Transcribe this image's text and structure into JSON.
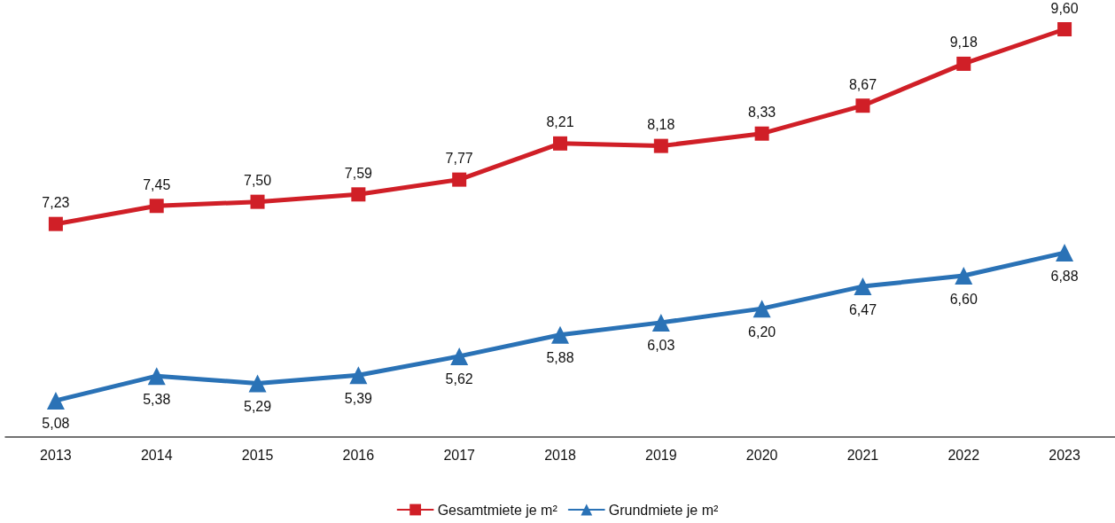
{
  "chart_data": {
    "type": "line",
    "categories": [
      "2013",
      "2014",
      "2015",
      "2016",
      "2017",
      "2018",
      "2019",
      "2020",
      "2021",
      "2022",
      "2023"
    ],
    "series": [
      {
        "name": "Gesamtmiete je m²",
        "color": "#d01f27",
        "marker": "square",
        "values": [
          7.23,
          7.45,
          7.5,
          7.59,
          7.77,
          8.21,
          8.18,
          8.33,
          8.67,
          9.18,
          9.6
        ],
        "value_labels": [
          "7,23",
          "7,45",
          "7,50",
          "7,59",
          "7,77",
          "8,21",
          "8,18",
          "8,33",
          "8,67",
          "9,18",
          "9,60"
        ]
      },
      {
        "name": "Grundmiete je m²",
        "color": "#2a72b6",
        "marker": "triangle",
        "values": [
          5.08,
          5.38,
          5.29,
          5.39,
          5.62,
          5.88,
          6.03,
          6.2,
          6.47,
          6.6,
          6.88
        ],
        "value_labels": [
          "5,08",
          "5,38",
          "5,29",
          "5,39",
          "5,62",
          "5,88",
          "6,03",
          "6,20",
          "6,47",
          "6,60",
          "6,88"
        ]
      }
    ],
    "legend": "bottom",
    "grid": false
  }
}
